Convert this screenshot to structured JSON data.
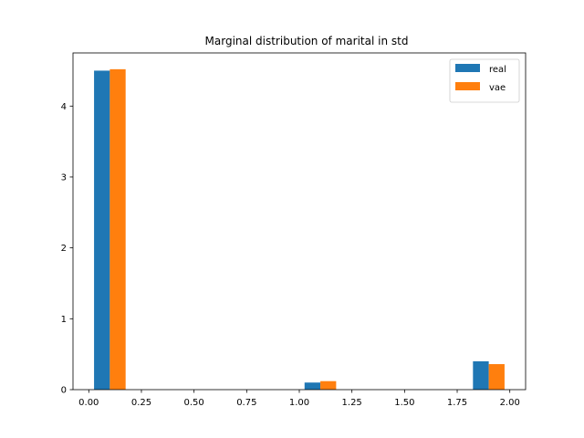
{
  "chart_data": {
    "type": "bar",
    "title": "Marginal distribution of marital in std",
    "xlabel": "",
    "ylabel": "",
    "xlim": [
      -0.075,
      2.075
    ],
    "ylim": [
      0,
      4.75
    ],
    "xticks": [
      0.0,
      0.25,
      0.5,
      0.75,
      1.0,
      1.25,
      1.5,
      1.75,
      2.0
    ],
    "xtick_labels": [
      "0.00",
      "0.25",
      "0.50",
      "0.75",
      "1.00",
      "1.25",
      "1.50",
      "1.75",
      "2.00"
    ],
    "yticks": [
      0,
      1,
      2,
      3,
      4
    ],
    "ytick_labels": [
      "0",
      "1",
      "2",
      "3",
      "4"
    ],
    "grid": false,
    "legend_position": "top-right",
    "bin_edges": [
      0.025,
      0.1,
      1.025,
      1.1,
      1.825,
      1.9
    ],
    "bar_width": 0.075,
    "series": [
      {
        "name": "real",
        "color": "#1f77b4",
        "x": [
          0.025,
          1.025,
          1.825
        ],
        "values": [
          4.5,
          0.1,
          0.4
        ]
      },
      {
        "name": "vae",
        "color": "#ff7f0e",
        "x": [
          0.1,
          1.1,
          1.9
        ],
        "values": [
          4.52,
          0.12,
          0.36
        ]
      }
    ]
  }
}
